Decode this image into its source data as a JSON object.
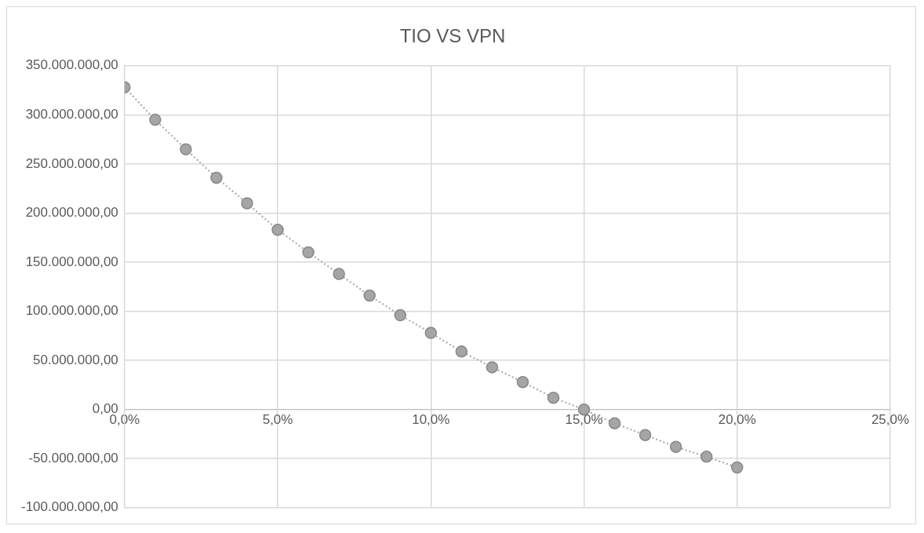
{
  "chart_data": {
    "type": "line",
    "title": "TIO VS VPN",
    "x": [
      0,
      1,
      2,
      3,
      4,
      5,
      6,
      7,
      8,
      9,
      10,
      11,
      12,
      13,
      14,
      15,
      16,
      17,
      18,
      19,
      20
    ],
    "series": [
      {
        "color": "#a5a5a5",
        "values": [
          328000000,
          295000000,
          265000000,
          236000000,
          210000000,
          183000000,
          160000000,
          138000000,
          116000000,
          96000000,
          78000000,
          59000000,
          43000000,
          28000000,
          12000000,
          0,
          -14000000,
          -26000000,
          -38000000,
          -48000000,
          -59000000
        ]
      }
    ],
    "marker": "circle",
    "line_style": "dotted",
    "grid": true,
    "xlim": [
      0,
      25
    ],
    "xticks": [
      {
        "value": 0,
        "label": "0,0%"
      },
      {
        "value": 5,
        "label": "5,0%"
      },
      {
        "value": 10,
        "label": "10,0%"
      },
      {
        "value": 15,
        "label": "15,0%"
      },
      {
        "value": 20,
        "label": "20,0%"
      },
      {
        "value": 25,
        "label": "25,0%"
      }
    ],
    "ylim": [
      -100000000,
      350000000
    ],
    "yticks": [
      {
        "value": -100000000,
        "label": "-100.000.000,00"
      },
      {
        "value": -50000000,
        "label": "-50.000.000,00"
      },
      {
        "value": 0,
        "label": "0,00"
      },
      {
        "value": 50000000,
        "label": "50.000.000,00"
      },
      {
        "value": 100000000,
        "label": "100.000.000,00"
      },
      {
        "value": 150000000,
        "label": "150.000.000,00"
      },
      {
        "value": 200000000,
        "label": "200.000.000,00"
      },
      {
        "value": 250000000,
        "label": "250.000.000,00"
      },
      {
        "value": 300000000,
        "label": "300.000.000,00"
      },
      {
        "value": 350000000,
        "label": "350.000.000,00"
      }
    ]
  }
}
